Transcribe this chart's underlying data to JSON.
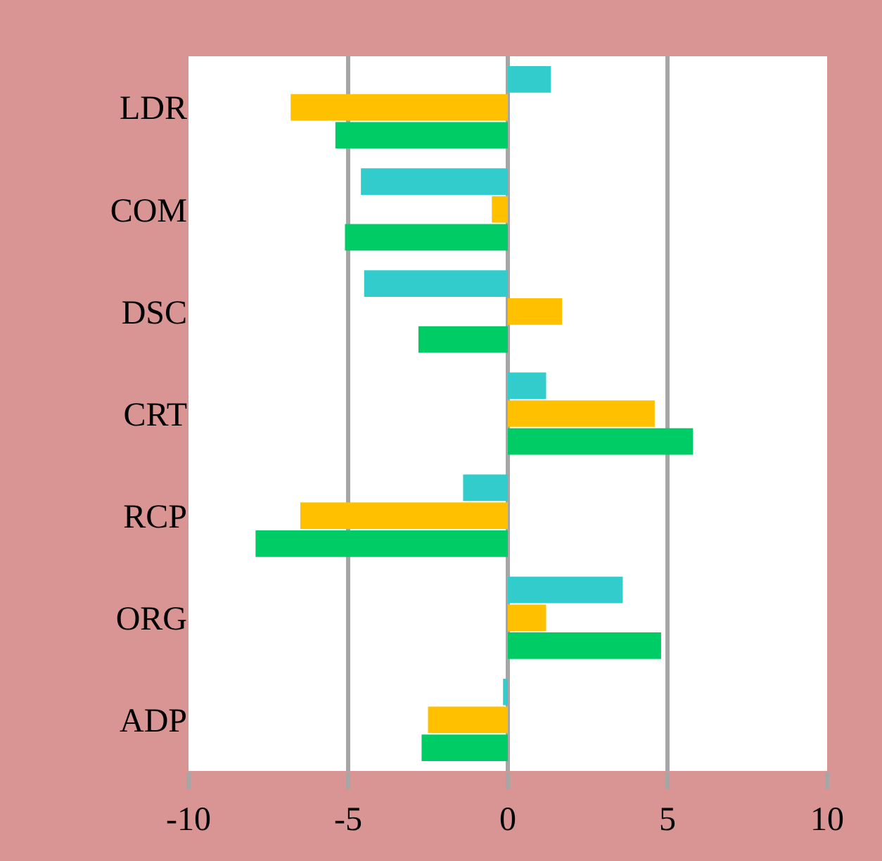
{
  "chart_data": {
    "type": "bar",
    "orientation": "horizontal",
    "categories": [
      "LDR",
      "COM",
      "DSC",
      "CRT",
      "RCP",
      "ORG",
      "ADP"
    ],
    "series": [
      {
        "color": "#33cccc",
        "values": [
          1.35,
          -4.6,
          -4.5,
          1.2,
          -1.4,
          3.6,
          -0.15
        ]
      },
      {
        "color": "#ffc000",
        "values": [
          -6.8,
          -0.5,
          1.7,
          4.6,
          -6.5,
          1.2,
          -2.5
        ]
      },
      {
        "color": "#00cc66",
        "values": [
          -5.4,
          -5.1,
          -2.8,
          5.8,
          -7.9,
          4.8,
          -2.7
        ]
      }
    ],
    "xlim": [
      -10,
      10
    ],
    "xticks": [
      -10,
      -5,
      0,
      5,
      10
    ],
    "grid": "x"
  }
}
